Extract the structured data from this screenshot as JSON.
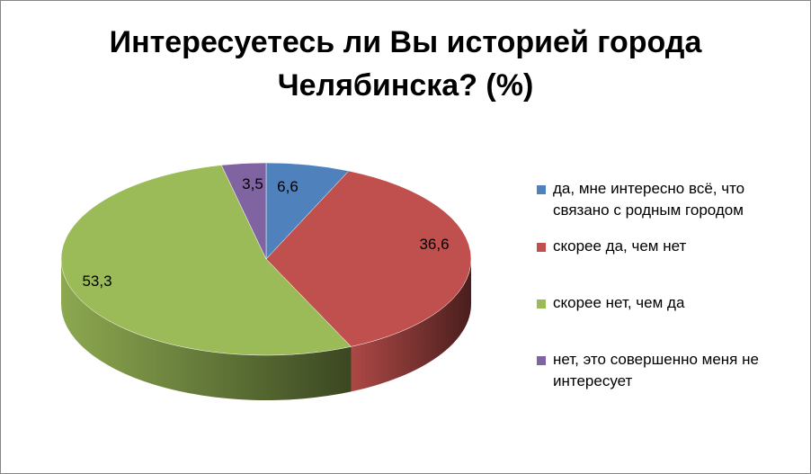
{
  "chart_data": {
    "type": "pie",
    "title_lines": [
      "Интересуетесь ли Вы историей города",
      "Челябинска? (%)"
    ],
    "categories": [
      "да, мне интересно всё, что связано с родным городом",
      "скорее да, чем нет",
      "скорее нет, чем да",
      "нет, это совершенно меня не интересует"
    ],
    "values": [
      6.6,
      36.6,
      53.3,
      3.5
    ],
    "value_labels": [
      "6,6",
      "36,6",
      "53,3",
      "3,5"
    ],
    "colors": [
      "#4F81BD",
      "#C0504D",
      "#9BBB59",
      "#8064A2"
    ],
    "legend_position": "right",
    "three_d": true
  }
}
